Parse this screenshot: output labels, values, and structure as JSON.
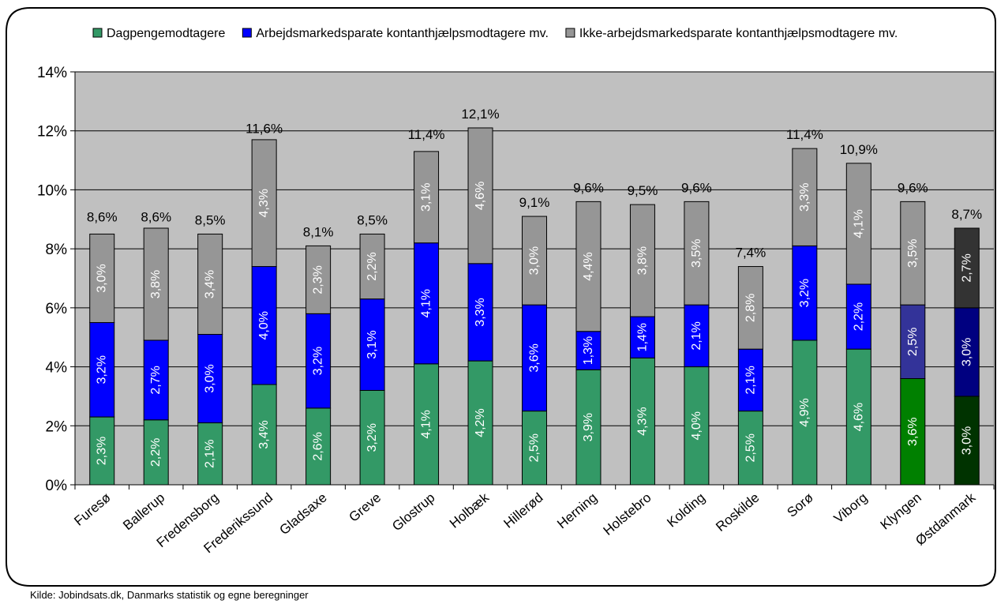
{
  "chart_data": {
    "type": "bar",
    "stacked": true,
    "categories": [
      "Furesø",
      "Ballerup",
      "Fredensborg",
      "Frederikssund",
      "Gladsaxe",
      "Greve",
      "Glostrup",
      "Holbæk",
      "Hillerød",
      "Herning",
      "Holstebro",
      "Kolding",
      "Roskilde",
      "Sorø",
      "Viborg",
      "Klyngen",
      "Østdanmark"
    ],
    "series": [
      {
        "name": "Dagpengemodtagere",
        "color": "#339966",
        "values": [
          2.3,
          2.2,
          2.1,
          3.4,
          2.6,
          3.2,
          4.1,
          4.2,
          2.5,
          3.9,
          4.3,
          4.0,
          2.5,
          4.9,
          4.6,
          3.6,
          3.0
        ],
        "labels": [
          "2,3%",
          "2,2%",
          "2,1%",
          "3,4%",
          "2,6%",
          "3,2%",
          "4,1%",
          "4,2%",
          "2,5%",
          "3,9%",
          "4,3%",
          "4,0%",
          "2,5%",
          "4,9%",
          "4,6%",
          "3,6%",
          "3,0%"
        ]
      },
      {
        "name": "Arbejdsmarkedsparate kontanthjælpsmodtagere mv.",
        "color": "#0000ff",
        "values": [
          3.2,
          2.7,
          3.0,
          4.0,
          3.2,
          3.1,
          4.1,
          3.3,
          3.6,
          1.3,
          1.4,
          2.1,
          2.1,
          3.2,
          2.2,
          2.5,
          3.0
        ],
        "labels": [
          "3,2%",
          "2,7%",
          "3,0%",
          "4,0%",
          "3,2%",
          "3,1%",
          "4,1%",
          "3,3%",
          "3,6%",
          "1,3%",
          "1,4%",
          "2,1%",
          "2,1%",
          "3,2%",
          "2,2%",
          "2,5%",
          "3,0%"
        ]
      },
      {
        "name": "Ikke-arbejdsmarkedsparate kontanthjælpsmodtagere mv.",
        "color": "#969696",
        "values": [
          3.0,
          3.8,
          3.4,
          4.3,
          2.3,
          2.2,
          3.1,
          4.6,
          3.0,
          4.4,
          3.8,
          3.5,
          2.8,
          3.3,
          4.1,
          3.5,
          2.7
        ],
        "labels": [
          "3,0%",
          "3,8%",
          "3,4%",
          "4,3%",
          "2,3%",
          "2,2%",
          "3,1%",
          "4,6%",
          "3,0%",
          "4,4%",
          "3,8%",
          "3,5%",
          "2,8%",
          "3,3%",
          "4,1%",
          "3,5%",
          "2,7%"
        ]
      }
    ],
    "totals": [
      8.6,
      8.6,
      8.5,
      11.6,
      8.1,
      8.5,
      11.4,
      12.1,
      9.1,
      9.6,
      9.5,
      9.6,
      7.4,
      11.4,
      10.9,
      9.6,
      8.7
    ],
    "total_labels": [
      "8,6%",
      "8,6%",
      "8,5%",
      "11,6%",
      "8,1%",
      "8,5%",
      "11,4%",
      "12,1%",
      "9,1%",
      "9,6%",
      "9,5%",
      "9,6%",
      "7,4%",
      "11,4%",
      "10,9%",
      "9,6%",
      "8,7%"
    ],
    "highlight_colors": {
      "Klyngen": [
        "#008000",
        "#333399",
        "#969696"
      ],
      "Østdanmark": [
        "#003300",
        "#000080",
        "#333333"
      ]
    },
    "ylim": [
      0,
      14
    ],
    "y_ticks": [
      "0%",
      "2%",
      "4%",
      "6%",
      "8%",
      "10%",
      "12%",
      "14%"
    ],
    "grid": true,
    "legend_position": "top",
    "plot_background": "#c0c0c0"
  },
  "source": "Kilde: Jobindsats.dk, Danmarks statistik og egne beregninger"
}
